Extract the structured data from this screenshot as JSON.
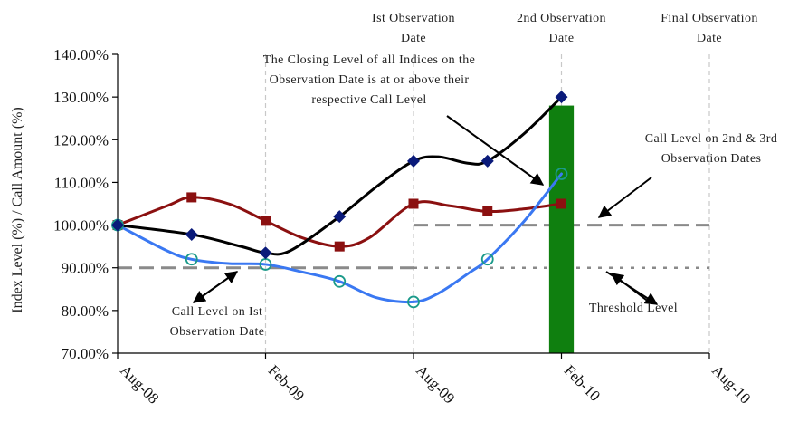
{
  "chart_data": {
    "type": "line",
    "ylabel": "Index Level (%) / Call Amount (%)",
    "ylim": [
      70,
      140
    ],
    "yticks": [
      "70.00%",
      "80.00%",
      "90.00%",
      "100.00%",
      "110.00%",
      "120.00%",
      "130.00%",
      "140.00%"
    ],
    "xticks": [
      {
        "label": "Aug-08",
        "x": 0
      },
      {
        "label": "Feb-09",
        "x": 6
      },
      {
        "label": "Aug-09",
        "x": 12
      },
      {
        "label": "Feb-10",
        "x": 18
      },
      {
        "label": "Aug-10",
        "x": 24
      }
    ],
    "xlim": [
      0,
      24
    ],
    "grid": "vertical dashed at each x tick",
    "series": [
      {
        "color": "#000000",
        "marker": "diamond",
        "marker_color": "#0a1a7a",
        "points": [
          [
            0,
            100
          ],
          [
            3,
            97.8
          ],
          [
            6,
            93.5
          ],
          [
            9,
            102
          ],
          [
            12,
            115
          ],
          [
            15,
            115
          ],
          [
            18,
            130
          ]
        ],
        "path": [
          [
            0,
            100
          ],
          [
            3,
            97.8
          ],
          [
            5,
            95
          ],
          [
            6,
            93.5
          ],
          [
            7,
            94
          ],
          [
            9,
            102
          ],
          [
            10.5,
            109
          ],
          [
            12,
            115
          ],
          [
            13,
            116
          ],
          [
            14.2,
            114.5
          ],
          [
            15,
            115
          ],
          [
            16.5,
            121.5
          ],
          [
            18,
            130
          ]
        ]
      },
      {
        "color": "#8b1010",
        "marker": "square",
        "marker_color": "#8b1010",
        "points": [
          [
            0,
            100
          ],
          [
            3,
            106.5
          ],
          [
            6,
            101
          ],
          [
            9,
            95
          ],
          [
            12,
            105
          ],
          [
            15,
            103.2
          ],
          [
            18,
            105
          ]
        ],
        "path": [
          [
            0,
            100
          ],
          [
            2,
            104.5
          ],
          [
            3,
            106.5
          ],
          [
            4.5,
            105
          ],
          [
            6,
            101
          ],
          [
            7.5,
            97
          ],
          [
            9,
            95
          ],
          [
            10.2,
            97
          ],
          [
            12,
            105
          ],
          [
            13.5,
            104.5
          ],
          [
            15,
            103.2
          ],
          [
            16.5,
            103.8
          ],
          [
            18,
            105
          ]
        ]
      },
      {
        "color": "#3a78f2",
        "marker": "circle",
        "marker_color": "#1b9a8a",
        "points": [
          [
            0,
            100
          ],
          [
            3,
            92
          ],
          [
            6,
            90.8
          ],
          [
            9,
            86.8
          ],
          [
            12,
            82
          ],
          [
            15,
            92
          ],
          [
            18,
            112
          ]
        ],
        "path": [
          [
            0,
            100
          ],
          [
            2,
            94
          ],
          [
            3,
            92
          ],
          [
            4.5,
            91
          ],
          [
            6,
            90.8
          ],
          [
            7.5,
            89
          ],
          [
            9,
            86.8
          ],
          [
            10.5,
            83
          ],
          [
            12,
            82
          ],
          [
            13,
            84
          ],
          [
            14.3,
            89
          ],
          [
            15,
            92
          ],
          [
            16.5,
            101
          ],
          [
            18,
            112
          ]
        ]
      }
    ],
    "bar": {
      "x": 17.5,
      "width_months": 1,
      "value": 128,
      "color": "#0f7f0f"
    },
    "reference_lines": [
      {
        "name": "Call Level on 1st Observation Date",
        "y": 90,
        "x_from": 0,
        "x_to": 12,
        "style": "dashed",
        "color": "#8a8a8a"
      },
      {
        "name": "Call Level on 2nd & 3rd Observation Dates",
        "y": 100,
        "x_from": 12,
        "x_to": 24,
        "style": "dashed",
        "color": "#8a8a8a"
      },
      {
        "name": "Threshold Level",
        "y": 90,
        "x_from": 12,
        "x_to": 24,
        "style": "dotted",
        "color": "#8a8a8a"
      }
    ],
    "top_labels": [
      {
        "lines": [
          "Ist Observation",
          "Date"
        ],
        "x": 12
      },
      {
        "lines": [
          "2nd Observation",
          "Date"
        ],
        "x": 18
      },
      {
        "lines": [
          "Final Observation",
          "Date"
        ],
        "x": 24
      }
    ],
    "annotations": [
      {
        "name": "closing-level-note",
        "lines": [
          "The Closing Level of all Indices on the",
          "Observation Date is at or above their",
          "respective Call Level"
        ]
      },
      {
        "name": "call-level-2nd-3rd",
        "lines": [
          "Call Level on 2nd & 3rd",
          "Observation Dates"
        ]
      },
      {
        "name": "call-level-1st",
        "lines": [
          "Call Level on Ist",
          "Observation Date"
        ]
      },
      {
        "name": "threshold",
        "lines": [
          "Threshold Level"
        ]
      }
    ]
  }
}
